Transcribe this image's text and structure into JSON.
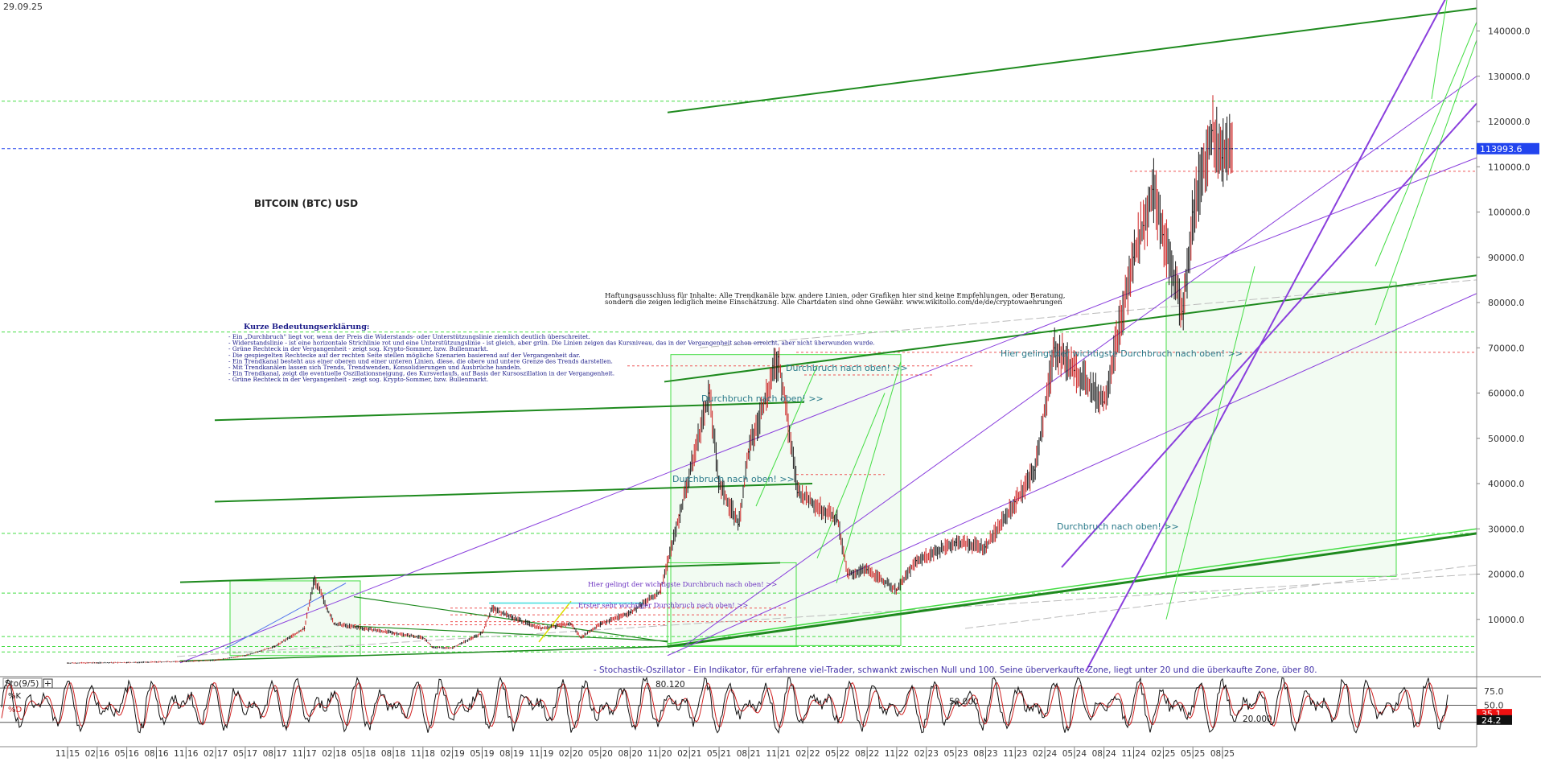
{
  "header": {
    "date": "29.09.25"
  },
  "chart_data": [
    {
      "type": "line",
      "title": "BITCOIN (BTC) USD",
      "y_axis": {
        "ticks": [
          10000,
          20000,
          30000,
          40000,
          50000,
          60000,
          70000,
          80000,
          90000,
          100000,
          110000,
          120000,
          130000,
          140000
        ],
        "tick_labels": [
          "10000.0",
          "20000.0",
          "30000.0",
          "40000.0",
          "50000.0",
          "60000.0",
          "70000.0",
          "80000.0",
          "90000.0",
          "100000.0",
          "110000.0",
          "120000.0",
          "130000.0",
          "140000.0"
        ],
        "range": [
          0,
          148000
        ]
      },
      "x_axis": {
        "tick_labels": [
          "11|15",
          "02|16",
          "05|16",
          "08|16",
          "11|16",
          "02|17",
          "05|17",
          "08|17",
          "11|17",
          "02|18",
          "05|18",
          "08|18",
          "11|18",
          "02|19",
          "05|19",
          "08|19",
          "11|19",
          "02|20",
          "05|20",
          "08|20",
          "11|20",
          "02|21",
          "05|21",
          "08|21",
          "11|21",
          "02|22",
          "05|22",
          "08|22",
          "11|22",
          "02|23",
          "05|23",
          "08|23",
          "11|23",
          "02|24",
          "05|24",
          "08|24",
          "11|24",
          "02|25",
          "05|25",
          "08|25"
        ]
      },
      "current_price": {
        "label": "113993.6",
        "value": 113993.6
      },
      "series": [
        {
          "x": [
            "11|15",
            "02|16",
            "05|16",
            "08|16",
            "11|16",
            "02|17",
            "05|17",
            "08|17",
            "11|17",
            "12|17",
            "02|18",
            "05|18",
            "08|18",
            "11|18",
            "12|18",
            "02|19",
            "05|19",
            "06|19",
            "08|19",
            "11|19",
            "02|20",
            "03|20",
            "05|20",
            "08|20",
            "11|20",
            "01|21",
            "04|21",
            "05|21",
            "07|21",
            "08|21",
            "11|21",
            "01|22",
            "05|22",
            "06|22",
            "08|22",
            "11|22",
            "01|23",
            "05|23",
            "08|23",
            "11|23",
            "01|24",
            "03|24",
            "05|24",
            "08|24",
            "11|24",
            "12|24",
            "01|25",
            "02|25",
            "04|25",
            "05|25",
            "07|25",
            "08|25",
            "09|25"
          ],
          "values": [
            350,
            400,
            450,
            580,
            700,
            1000,
            2000,
            4000,
            8000,
            19000,
            9000,
            8000,
            7000,
            6000,
            3800,
            3700,
            7000,
            12500,
            10500,
            8000,
            9000,
            6000,
            9000,
            11500,
            16000,
            33000,
            60000,
            40000,
            31000,
            47000,
            68000,
            38000,
            32000,
            20000,
            21000,
            16500,
            23000,
            27000,
            26000,
            36000,
            43000,
            70000,
            65000,
            58000,
            90000,
            97000,
            105000,
            95000,
            78000,
            100000,
            118000,
            112000,
            113993.6
          ]
        }
      ],
      "annotations": {
        "disclaimer_1": "Haftungsausschluss für Inhalte: Alle Trendkanäle bzw. andere Linien, oder Grafiken hier sind keine Empfehlungen, oder Beratung,",
        "disclaimer_2": "sondern die zeigen lediglich meine Einschätzung. Alle Chartdaten sind ohne Gewähr. www.wikitollo.com/de/de/cryptowaehrungen",
        "legend_title": "Kurze Bedeutungserklärung:",
        "legend_lines": [
          "- Ein „Durchbruch\" liegt vor, wenn der Preis die Widerstands- oder Unterstützungslinie ziemlich deutlich überschreitet.",
          "- Widerstandslinie - ist eine horizontale Strichlinie rot und eine Unterstützungslinie - ist gleich, aber grün. Die Linien zeigen das Kursniveau, das in der Vergangenheit schon erreicht, aber nicht überwunden wurde.",
          "- Grüne Rechteck in der Vergangenheit - zeigt sog. Krypto-Sommer, bzw. Bullenmarkt.",
          "- Die gespiegelten Rechtecke auf der rechten Seite stellen mögliche Szenarien basierend auf der Vergangenheit dar.",
          "- Ein Trendkanal besteht aus einer oberen und einer unteren Linien, diese, die obere und untere Grenze des Trends darstellen.",
          "- Mit Trendkanälen lassen sich Trends, Trendwenden, Konsolidierungen und Ausbrüche handeln.",
          " - Ein Trendkanal, zeigt die eventuelle Oszillationsneigung, des Kursverlaufs, auf Basis der Kursoszillation in der Vergangenheit.",
          "- Grüne Rechteck in der Vergangenheit - zeigt sog. Krypto-Sommer, bzw. Bullenmarkt."
        ],
        "breakout_1": "Durchbruch nach oben! >>",
        "breakout_2": "Durchbruch nach oben! >>",
        "breakout_3": "Durchbruch nach oben! >>",
        "breakout_4": "Durchbruch nach oben! >>",
        "breakout_main": "Hier gelingt der wichtigste Durchbruch nach oben! >>",
        "breakout_small_1": "Hier gelingt der wichtigste Durchbruch nach oben! >>",
        "breakout_small_2": "Erster sehr wichtiger Durchbruch nach oben! >>",
        "stochastic_note": "- Stochastik-Oszillator - Ein Indikator, für erfahrene viel-Trader, schwankt zwischen Null und 100. Seine überverkaufte Zone, liegt unter 20 und die überkaufte Zone, über 80."
      }
    },
    {
      "type": "line",
      "title": "Sto(9/5)",
      "legend": [
        "%K",
        "%D"
      ],
      "y_axis": {
        "ticks": [
          75.0,
          50.0
        ],
        "tick_labels": [
          "75.0",
          "50.0"
        ],
        "range": [
          0,
          100
        ]
      },
      "reference_lines": [
        {
          "label": "80.120",
          "value": 80.12
        },
        {
          "label": "50.000",
          "value": 50.0
        },
        {
          "label": "20.000",
          "value": 20.0
        }
      ],
      "current_values": {
        "k": "35.1",
        "d": "24.2"
      },
      "series": [
        {
          "name": "%K",
          "values": []
        },
        {
          "name": "%D",
          "values": []
        }
      ]
    }
  ],
  "colors": {
    "price": "#1a1a1a",
    "green_line": "#1e8a1e",
    "light_green": "#44dd44",
    "purple": "#8a3fdd",
    "blue_current": "#2244ee",
    "red_dash": "#ee5555",
    "green_box_fill": "#f2fbf2",
    "stoch_k": "#111111",
    "stoch_d": "#d02020",
    "label_teal": "#2a7a8a",
    "legend_blue": "#1a1a88"
  }
}
